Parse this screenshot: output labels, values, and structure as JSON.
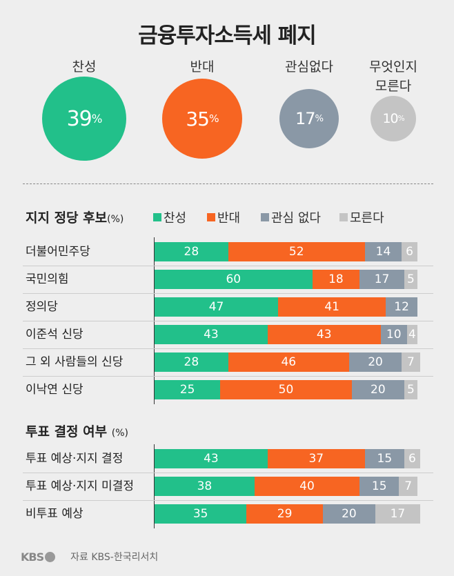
{
  "title": "금융투자소득세 폐지",
  "summary": [
    {
      "label": "찬성",
      "value": 39,
      "color": "#22c08a"
    },
    {
      "label": "반대",
      "value": 35,
      "color": "#f76522"
    },
    {
      "label": "관심없다",
      "value": 17,
      "color": "#8a98a6"
    },
    {
      "label": "무엇인지\n모른다",
      "value": 10,
      "color": "#c4c4c4"
    }
  ],
  "percent_sign": "%",
  "chart_data": [
    {
      "type": "bar",
      "stacked": true,
      "orientation": "horizontal",
      "title": "지지 정당 후보",
      "unit": "(%)",
      "legend": [
        "찬성",
        "반대",
        "관심 없다",
        "모른다"
      ],
      "colors": [
        "#22c08a",
        "#f76522",
        "#8a98a6",
        "#c4c4c4"
      ],
      "categories": [
        "더불어민주당",
        "국민의힘",
        "정의당",
        "이준석 신당",
        "그 외 사람들의 신당",
        "이낙연 신당"
      ],
      "series": [
        {
          "name": "찬성",
          "values": [
            28,
            60,
            47,
            43,
            28,
            25
          ]
        },
        {
          "name": "반대",
          "values": [
            52,
            18,
            41,
            43,
            46,
            50
          ]
        },
        {
          "name": "관심 없다",
          "values": [
            14,
            17,
            12,
            10,
            20,
            20
          ]
        },
        {
          "name": "모른다",
          "values": [
            6,
            5,
            0,
            4,
            7,
            5
          ]
        }
      ]
    },
    {
      "type": "bar",
      "stacked": true,
      "orientation": "horizontal",
      "title": "투표 결정 여부",
      "unit": "(%)",
      "colors": [
        "#22c08a",
        "#f76522",
        "#8a98a6",
        "#c4c4c4"
      ],
      "categories": [
        "투표 예상·지지 결정",
        "투표 예상·지지 미결정",
        "비투표 예상"
      ],
      "series": [
        {
          "name": "찬성",
          "values": [
            43,
            38,
            35
          ]
        },
        {
          "name": "반대",
          "values": [
            37,
            40,
            29
          ]
        },
        {
          "name": "관심 없다",
          "values": [
            15,
            15,
            20
          ]
        },
        {
          "name": "모른다",
          "values": [
            6,
            7,
            17
          ]
        }
      ]
    }
  ],
  "footer": {
    "logo": "KBS",
    "source": "자료 KBS-한국리서치"
  }
}
